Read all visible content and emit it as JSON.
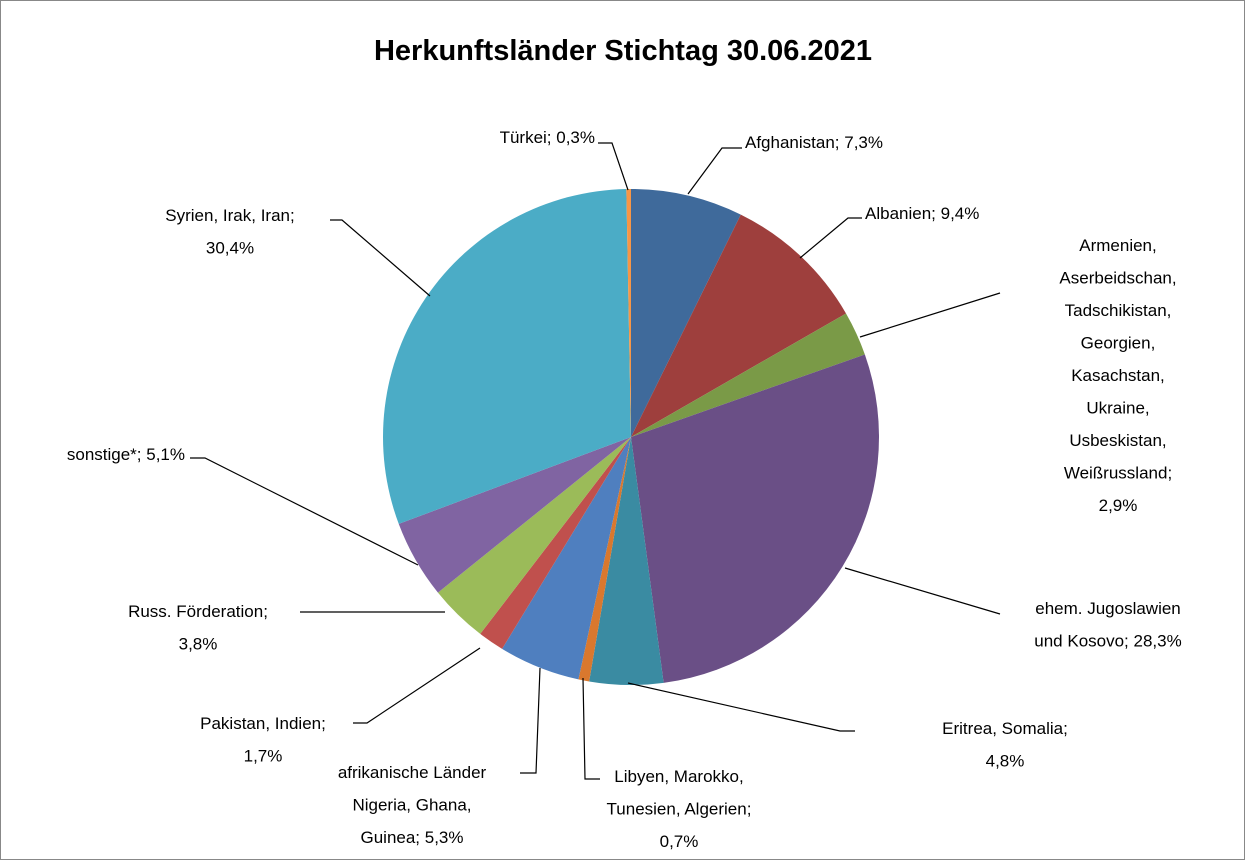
{
  "chart_data": {
    "type": "pie",
    "title": "Herkunftsländer Stichtag 30.06.2021",
    "labels": [
      "Afghanistan; 7,3%",
      "Albanien; 9,4%",
      "Armenien,\nAserbeidschan,\nTadschikistan,\nGeorgien,\nKasachstan,\nUkraine,\nUsbeskistan,\nWeißrussland;\n2,9%",
      "ehem. Jugoslawien\nund Kosovo; 28,3%",
      "Eritrea, Somalia;\n4,8%",
      "Libyen, Marokko,\nTunesien, Algerien;\n0,7%",
      "afrikanische Länder\nNigeria, Ghana,\nGuinea; 5,3%",
      "Pakistan, Indien;\n1,7%",
      "Russ. Förderation;\n3,8%",
      "sonstige*; 5,1%",
      "Syrien, Irak, Iran;\n30,4%",
      "Türkei; 0,3%"
    ],
    "values": [
      7.3,
      9.4,
      2.9,
      28.3,
      4.8,
      0.7,
      5.3,
      1.7,
      3.8,
      5.1,
      30.4,
      0.3
    ],
    "colors": [
      "#3f6a9b",
      "#9e3f3d",
      "#7a9a47",
      "#6a4f86",
      "#3a8ba2",
      "#d9782e",
      "#4f7fbf",
      "#c0504d",
      "#9bbb59",
      "#8064a2",
      "#4bacc6",
      "#f79646"
    ]
  }
}
